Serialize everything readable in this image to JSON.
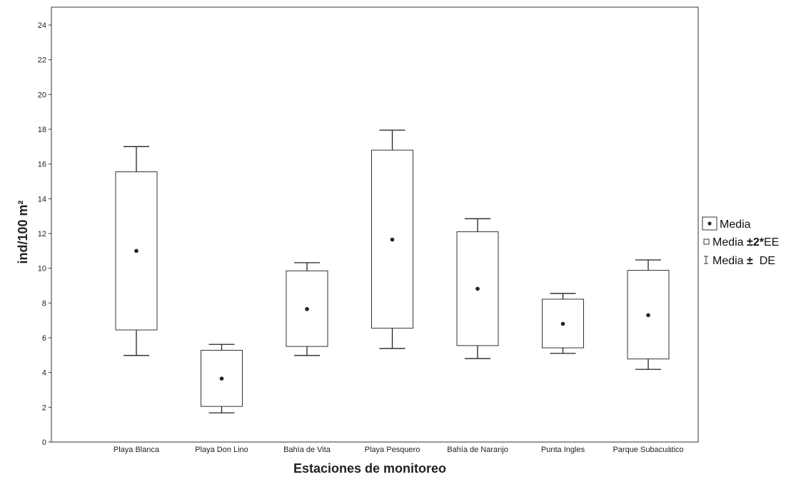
{
  "chart_data": {
    "type": "box",
    "xlabel": "Estaciones de monitoreo",
    "ylabel": "ind/100 m²",
    "ylim": [
      0,
      25
    ],
    "yticks": [
      0,
      2,
      4,
      6,
      8,
      10,
      12,
      14,
      16,
      18,
      20,
      22,
      24
    ],
    "grid": false,
    "legend_position": "right",
    "categories": [
      "Playa Blanca",
      "Playa Don Lino",
      "Bahía de Vita",
      "Playa Pesquero",
      "Bahía de Naranjo",
      "Punta Ingles",
      "Parque Subacuático"
    ],
    "mean": [
      11.0,
      3.65,
      7.65,
      11.65,
      8.82,
      6.8,
      7.3
    ],
    "box_low": [
      6.45,
      2.05,
      5.5,
      6.55,
      5.55,
      5.42,
      4.78
    ],
    "box_high": [
      15.55,
      5.28,
      9.85,
      16.8,
      12.1,
      8.22,
      9.88
    ],
    "whisker_low": [
      4.98,
      1.68,
      4.98,
      5.38,
      4.8,
      5.1,
      4.18
    ],
    "whisker_high": [
      17.0,
      5.62,
      10.32,
      17.95,
      12.85,
      8.55,
      10.48
    ],
    "legend": {
      "mean_label": "Media",
      "box_label_prefix": "Media ",
      "box_label_bold": "±2*",
      "box_label_suffix": "EE",
      "whisker_label_prefix": "Media ",
      "whisker_label_bold": "±",
      "whisker_label_suffix": "  DE"
    }
  }
}
